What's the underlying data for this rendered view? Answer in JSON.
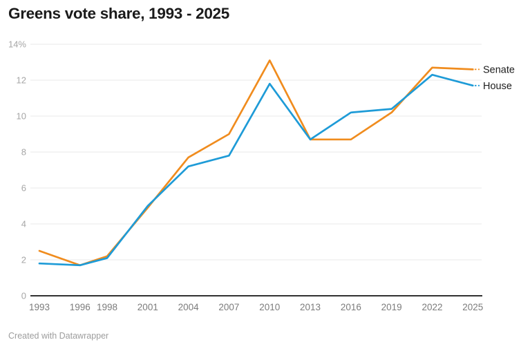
{
  "title": "Greens vote share, 1993 - 2025",
  "footer": {
    "text": "Created with Datawrapper"
  },
  "colors": {
    "senate": "#F08C1E",
    "house": "#1E9BD7",
    "gridline": "#e9e9e9",
    "axis_baseline": "#303030",
    "title_text": "#1a1a1a",
    "tick_text": "#7b7b7b"
  },
  "chart_data": {
    "type": "line",
    "title": "Greens vote share, 1993 - 2025",
    "xlabel": "",
    "ylabel": "",
    "x": [
      1993,
      1996,
      1998,
      2001,
      2004,
      2007,
      2010,
      2013,
      2016,
      2019,
      2022,
      2025
    ],
    "x_tick_labels": [
      "1993",
      "1996",
      "1998",
      "2001",
      "2004",
      "2007",
      "2010",
      "2013",
      "2016",
      "2019",
      "2022",
      "2025"
    ],
    "ylim": [
      0,
      14
    ],
    "y_ticks": [
      0,
      2,
      4,
      6,
      8,
      10,
      12,
      14
    ],
    "y_tick_labels": [
      "0",
      "2",
      "4",
      "6",
      "8",
      "10",
      "12",
      "14%"
    ],
    "grid": true,
    "legend_position": "right-of-line-ends",
    "series": [
      {
        "name": "Senate",
        "color": "#F08C1E",
        "values": [
          2.5,
          1.7,
          2.2,
          4.9,
          7.7,
          9.0,
          13.1,
          8.7,
          8.7,
          10.2,
          12.7,
          12.6
        ]
      },
      {
        "name": "House",
        "color": "#1E9BD7",
        "values": [
          1.8,
          1.7,
          2.1,
          5.0,
          7.2,
          7.8,
          11.8,
          8.7,
          10.2,
          10.4,
          12.3,
          11.7
        ]
      }
    ]
  }
}
